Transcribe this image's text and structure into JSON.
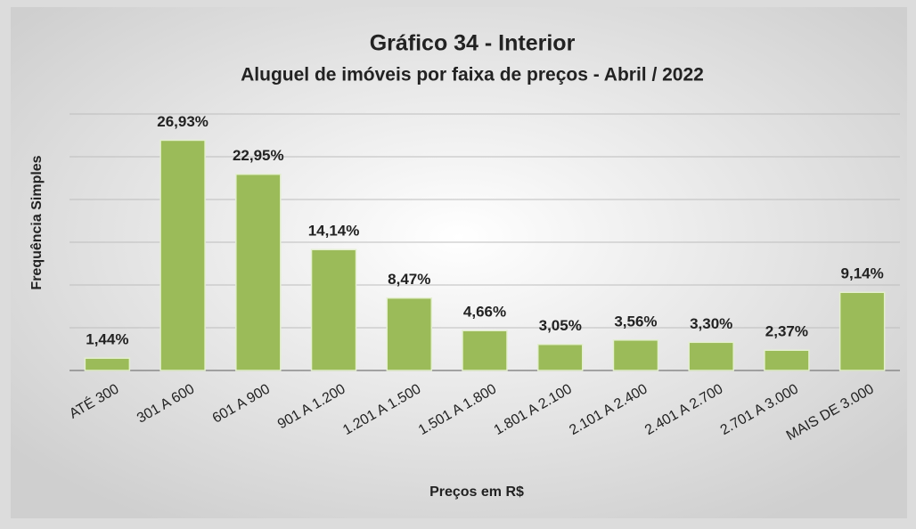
{
  "chart_data": {
    "type": "bar",
    "title": "Gráfico 34 - Interior",
    "subtitle": "Aluguel de imóveis por faixa de preços - Abril / 2022",
    "x_label": "Preços em R$",
    "y_label": "Frequência Simples",
    "categories": [
      "ATÉ 300",
      "301 A 600",
      "601 A 900",
      "901 A 1.200",
      "1.201 A 1.500",
      "1.501 A 1.800",
      "1.801 A 2.100",
      "2.101 A 2.400",
      "2.401 A 2.700",
      "2.701 A 3.000",
      "MAIS DE 3.000"
    ],
    "values": [
      1.44,
      26.93,
      22.95,
      14.14,
      8.47,
      4.66,
      3.05,
      3.56,
      3.3,
      2.37,
      9.14
    ],
    "value_labels": [
      "1,44%",
      "26,93%",
      "22,95%",
      "14,14%",
      "8,47%",
      "4,66%",
      "3,05%",
      "3,56%",
      "3,30%",
      "2,37%",
      "9,14%"
    ],
    "color": "#9bbb59",
    "ylim": [
      0,
      30
    ],
    "yticks": [
      0,
      5,
      10,
      15,
      20,
      25,
      30
    ],
    "grid": true
  }
}
